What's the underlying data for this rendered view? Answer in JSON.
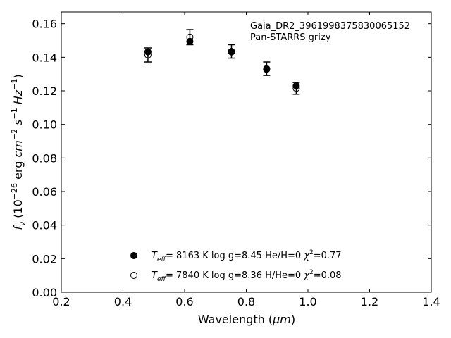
{
  "chart_data": {
    "type": "scatter",
    "annotation_lines": [
      "Gaia_DR2_3961998375830065152",
      "Pan-STARRS grizy"
    ],
    "xlabel": {
      "prefix": "Wavelength (",
      "unit": "μm",
      "suffix": ")"
    },
    "ylabel": {
      "f": "f",
      "nu": "ν",
      "open": " (10",
      "exp1": "−26",
      "erg": " erg ",
      "cm": "cm",
      "exp2": "−2",
      "s": " s",
      "exp3": "−1",
      "hz": " Hz",
      "exp4": "−1",
      "close": ")"
    },
    "xlim": [
      0.2,
      1.4
    ],
    "ylim": [
      0.0,
      0.167
    ],
    "xticks": [
      0.2,
      0.4,
      0.6,
      0.8,
      1.0,
      1.2,
      1.4
    ],
    "xtick_labels": [
      "0.2",
      "0.4",
      "0.6",
      "0.8",
      "1.0",
      "1.2",
      "1.4"
    ],
    "yticks": [
      0.0,
      0.02,
      0.04,
      0.06,
      0.08,
      0.1,
      0.12,
      0.14,
      0.16
    ],
    "ytick_labels": [
      "0.00",
      "0.02",
      "0.04",
      "0.06",
      "0.08",
      "0.10",
      "0.12",
      "0.14",
      "0.16"
    ],
    "grid": false,
    "observed": {
      "x": [
        0.481,
        0.617,
        0.752,
        0.866,
        0.962
      ],
      "y": [
        0.1414,
        0.152,
        0.1435,
        0.1332,
        0.1215
      ],
      "err": [
        0.0042,
        0.0045,
        0.004,
        0.004,
        0.0035
      ]
    },
    "series": [
      {
        "marker": "filled",
        "x": [
          0.481,
          0.617,
          0.752,
          0.866,
          0.962
        ],
        "y": [
          0.1432,
          0.1495,
          0.1432,
          0.1328,
          0.123
        ],
        "legend": {
          "teff_label": "T",
          "teff_sub": "eff",
          "text": "=  8163 K  log g=8.45  He/H=0  ",
          "chi": "χ",
          "chi_sup": "2",
          "chi_val": "=0.77"
        }
      },
      {
        "marker": "open",
        "x": [
          0.481,
          0.617,
          0.752,
          0.866,
          0.962
        ],
        "y": [
          0.1414,
          0.152,
          0.1435,
          0.1332,
          0.1215
        ],
        "legend": {
          "teff_label": "T",
          "teff_sub": "eff",
          "text": "=  7840 K  log g=8.36  H/He=0  ",
          "chi": "χ",
          "chi_sup": "2",
          "chi_val": "=0.08"
        }
      }
    ],
    "legend_position": "lower-center"
  }
}
